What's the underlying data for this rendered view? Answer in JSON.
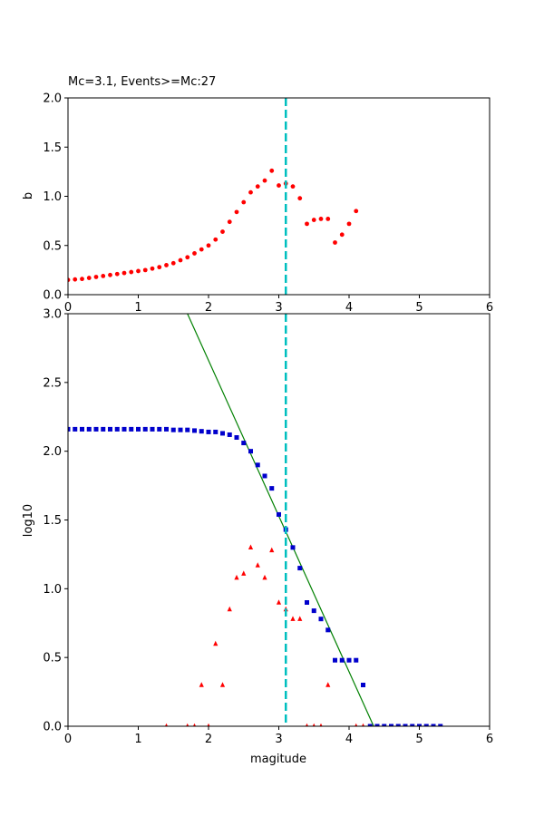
{
  "chart_data": [
    {
      "type": "scatter",
      "title": "Mc=3.1, Events>=Mc:27",
      "xlabel": "",
      "ylabel": "b",
      "xlim": [
        0,
        6
      ],
      "ylim": [
        0,
        2.0
      ],
      "xticks": [
        "0",
        "1",
        "2",
        "3",
        "4",
        "5",
        "6"
      ],
      "yticks": [
        "0.0",
        "0.5",
        "1.0",
        "1.5",
        "2.0"
      ],
      "grid": false,
      "colors": {
        "b_values": "#ff0000",
        "mc_line": "#00bfbf"
      },
      "mc_line_x": 3.1,
      "series": [
        {
          "marker": "circle",
          "x": [
            0.0,
            0.1,
            0.2,
            0.3,
            0.4,
            0.5,
            0.6,
            0.7,
            0.8,
            0.9,
            1.0,
            1.1,
            1.2,
            1.3,
            1.4,
            1.5,
            1.6,
            1.7,
            1.8,
            1.9,
            2.0,
            2.1,
            2.2,
            2.3,
            2.4,
            2.5,
            2.6,
            2.7,
            2.8,
            2.9,
            3.0,
            3.1,
            3.2,
            3.3,
            3.4,
            3.5,
            3.6,
            3.7,
            3.8,
            3.9,
            4.0,
            4.1
          ],
          "y": [
            0.15,
            0.155,
            0.16,
            0.17,
            0.18,
            0.19,
            0.2,
            0.21,
            0.22,
            0.23,
            0.24,
            0.25,
            0.265,
            0.28,
            0.3,
            0.32,
            0.35,
            0.38,
            0.42,
            0.46,
            0.5,
            0.56,
            0.64,
            0.74,
            0.84,
            0.94,
            1.04,
            1.1,
            1.16,
            1.26,
            1.11,
            1.13,
            1.1,
            0.98,
            0.72,
            0.76,
            0.77,
            0.77,
            0.53,
            0.61,
            0.72,
            0.85
          ]
        }
      ]
    },
    {
      "type": "scatter",
      "title": "",
      "xlabel": "magitude",
      "ylabel": "log10",
      "xlim": [
        0,
        6
      ],
      "ylim": [
        0,
        3.0
      ],
      "xticks": [
        "0",
        "1",
        "2",
        "3",
        "4",
        "5",
        "6"
      ],
      "yticks": [
        "0.0",
        "0.5",
        "1.0",
        "1.5",
        "2.0",
        "2.5",
        "3.0"
      ],
      "grid": false,
      "colors": {
        "cumulative": "#0000cc",
        "incremental": "#ff0000",
        "fit": "#008000",
        "mc_line": "#00bfbf"
      },
      "mc_line_x": 3.1,
      "fit_line": {
        "x": [
          1.7,
          4.35
        ],
        "y": [
          3.0,
          0.0
        ]
      },
      "series": [
        {
          "marker": "square",
          "x": [
            0.0,
            0.1,
            0.2,
            0.3,
            0.4,
            0.5,
            0.6,
            0.7,
            0.8,
            0.9,
            1.0,
            1.1,
            1.2,
            1.3,
            1.4,
            1.5,
            1.6,
            1.7,
            1.8,
            1.9,
            2.0,
            2.1,
            2.2,
            2.3,
            2.4,
            2.5,
            2.6,
            2.7,
            2.8,
            2.9,
            3.0,
            3.1,
            3.2,
            3.3,
            3.4,
            3.5,
            3.6,
            3.7,
            3.8,
            3.9,
            4.0,
            4.1,
            4.2,
            4.3,
            4.4,
            4.5,
            4.6,
            4.7,
            4.8,
            4.9,
            5.0,
            5.1,
            5.2,
            5.3
          ],
          "y": [
            2.16,
            2.16,
            2.16,
            2.16,
            2.16,
            2.16,
            2.16,
            2.16,
            2.16,
            2.16,
            2.16,
            2.16,
            2.16,
            2.16,
            2.16,
            2.155,
            2.155,
            2.155,
            2.15,
            2.145,
            2.14,
            2.14,
            2.13,
            2.12,
            2.1,
            2.06,
            2.0,
            1.9,
            1.82,
            1.73,
            1.54,
            1.43,
            1.3,
            1.15,
            0.9,
            0.84,
            0.78,
            0.7,
            0.48,
            0.48,
            0.48,
            0.48,
            0.3,
            0.0,
            0.0,
            0.0,
            0.0,
            0.0,
            0.0,
            0.0,
            0.0,
            0.0,
            0.0,
            0.0
          ]
        },
        {
          "marker": "triangle",
          "x": [
            1.4,
            1.7,
            1.8,
            1.9,
            2.0,
            2.1,
            2.2,
            2.3,
            2.4,
            2.5,
            2.6,
            2.7,
            2.8,
            2.9,
            3.0,
            3.1,
            3.2,
            3.3,
            3.4,
            3.5,
            3.6,
            3.7,
            4.1,
            4.2
          ],
          "y": [
            0.0,
            0.0,
            0.0,
            0.3,
            0.0,
            0.6,
            0.3,
            0.85,
            1.08,
            1.11,
            1.3,
            1.17,
            1.08,
            1.28,
            0.9,
            0.85,
            0.78,
            0.78,
            0.0,
            0.0,
            0.0,
            0.3,
            0.0,
            0.0
          ]
        }
      ]
    }
  ]
}
